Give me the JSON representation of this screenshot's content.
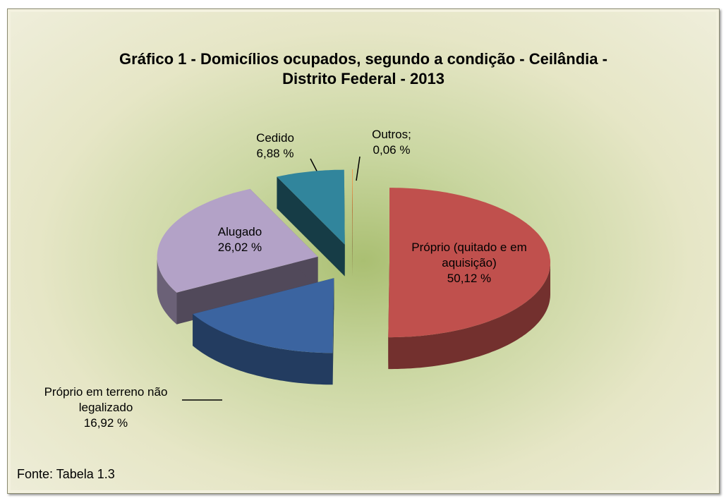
{
  "chart_data": {
    "type": "pie3d",
    "title": "Gráfico 1 - Domicílios ocupados, segundo a condição - Ceilândia - Distrito Federal - 2013",
    "categories": [
      "Próprio (quitado e em aquisição)",
      "Próprio em terreno não legalizado",
      "Alugado",
      "Cedido",
      "Outros;"
    ],
    "values": [
      50.12,
      16.92,
      26.02,
      6.88,
      0.06
    ],
    "value_labels": [
      "50,12 %",
      "16,92 %",
      "26,02 %",
      "6,88 %",
      "0,06 %"
    ],
    "colors": [
      "#c0504d",
      "#3b64a0",
      "#b3a2c7",
      "#31859c",
      "#f79646"
    ],
    "footnote": "Fonte: Tabela 1.3"
  }
}
